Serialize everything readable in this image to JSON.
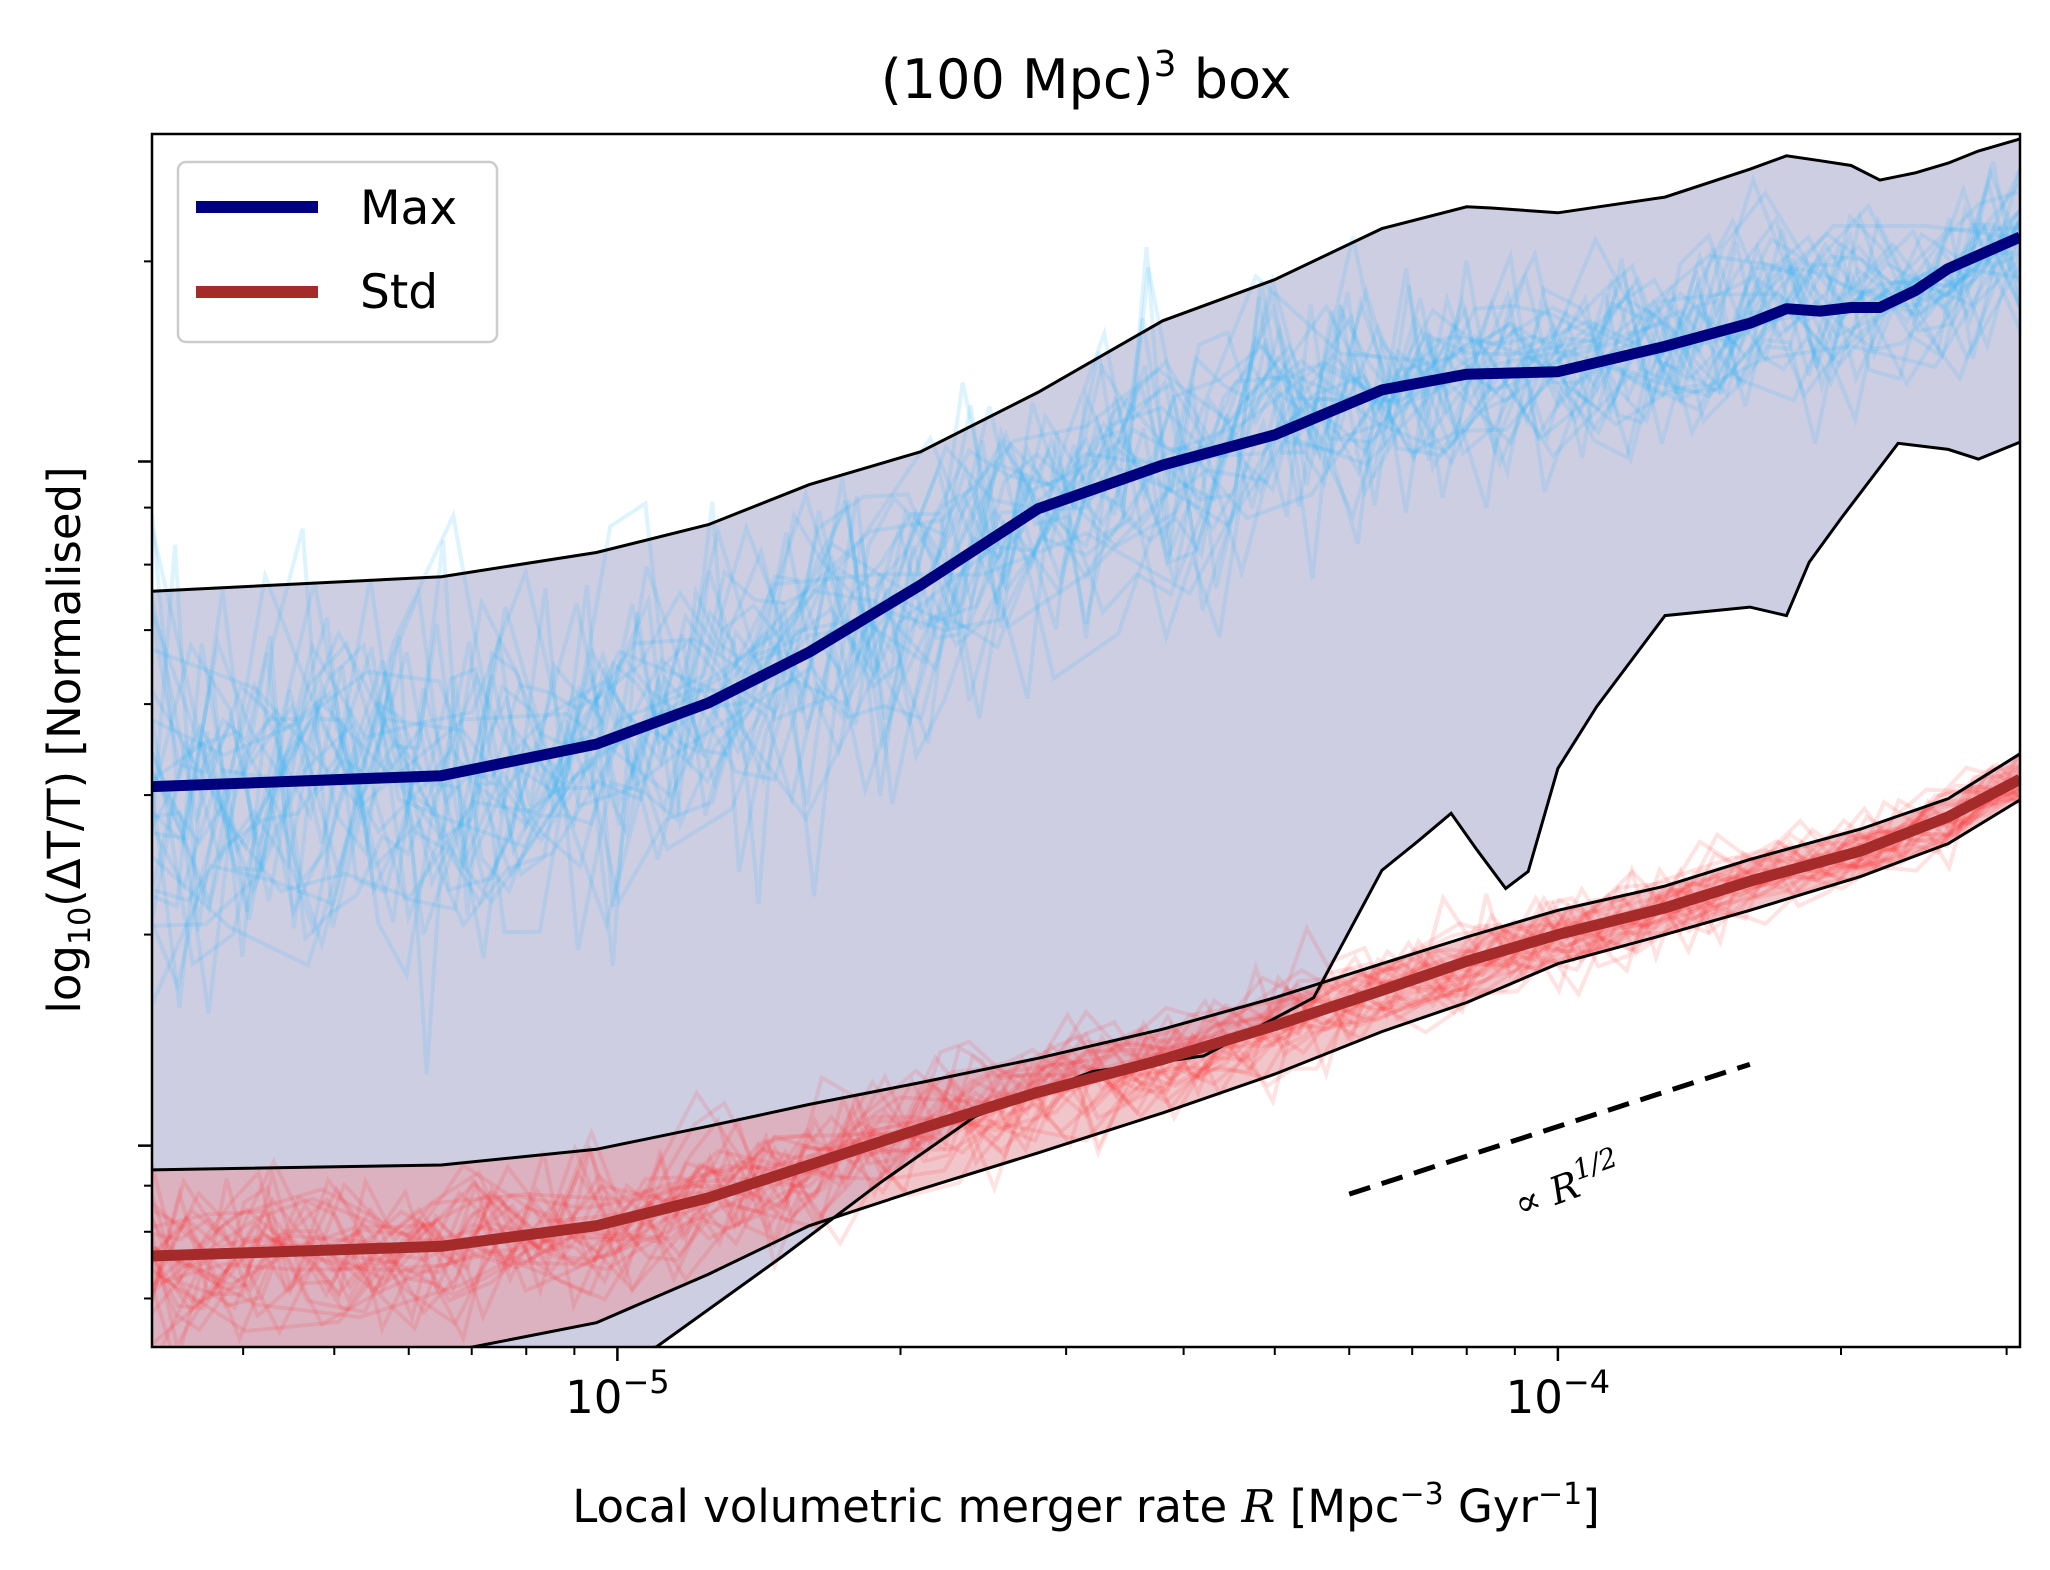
{
  "chart_data": {
    "type": "line",
    "title": "(100 Mpc)",
    "title_sup": "3",
    "title_suffix": " box",
    "xscale": "log",
    "yscale": "log",
    "xlim": [
      3.2e-06,
      0.00031
    ],
    "ylim": [
      0.0,
      1.0
    ],
    "xlabel": {
      "main": "Local volumetric merger rate ",
      "symbol": "R",
      "unit_open": " [Mpc",
      "unit_sup1": "−3",
      "unit_mid": " Gyr",
      "unit_sup2": "−1",
      "unit_close": "]"
    },
    "ylabel": {
      "prefix": "log",
      "sub": "10",
      "body": "(ΔT/T) [Normalised]"
    },
    "x_major_ticks": [
      {
        "value": 1e-05,
        "base": "10",
        "exp": "−5"
      },
      {
        "value": 0.0001,
        "base": "10",
        "exp": "−4"
      }
    ],
    "y_tick_labels": [],
    "legend": {
      "position": "upper left",
      "entries": [
        {
          "label": "Max",
          "color": "#00007f"
        },
        {
          "label": "Std",
          "color": "#a52a2a"
        }
      ]
    },
    "annotation": {
      "text_prefix": "∝ ",
      "symbol": "R",
      "exponent": "1/2",
      "line_x": [
        6e-05,
        0.00016
      ],
      "line_y": [
        0.126,
        0.233
      ]
    },
    "colors": {
      "max_line": "#00007f",
      "std_line": "#a52a2a",
      "max_band": "#b4b4d4",
      "std_band": "#e8a0a8",
      "max_samples": "#29b6f6",
      "std_samples": "#ff3030"
    },
    "series": [
      {
        "name": "Max",
        "x": [
          3.2e-06,
          6.5e-06,
          9.5e-06,
          1.25e-05,
          1.6e-05,
          2.1e-05,
          2.8e-05,
          3.8e-05,
          5e-05,
          6.5e-05,
          8e-05,
          0.0001,
          0.00013,
          0.00016,
          0.000175,
          0.00019,
          0.000205,
          0.00022,
          0.00024,
          0.00026,
          0.00028,
          0.00031
        ],
        "y": [
          0.462,
          0.471,
          0.497,
          0.531,
          0.573,
          0.628,
          0.691,
          0.727,
          0.752,
          0.789,
          0.802,
          0.804,
          0.825,
          0.844,
          0.856,
          0.854,
          0.857,
          0.857,
          0.871,
          0.889,
          0.9,
          0.915
        ]
      },
      {
        "name": "Max upper",
        "x": [
          3.2e-06,
          6.5e-06,
          9.5e-06,
          1.25e-05,
          1.6e-05,
          2.1e-05,
          2.8e-05,
          3.8e-05,
          5e-05,
          6.5e-05,
          8e-05,
          8.5e-05,
          0.0001,
          0.00013,
          0.00016,
          0.000175,
          0.00019,
          0.000205,
          0.00022,
          0.00024,
          0.00026,
          0.00028,
          0.00031
        ],
        "y": [
          0.623,
          0.635,
          0.655,
          0.678,
          0.711,
          0.738,
          0.787,
          0.846,
          0.88,
          0.922,
          0.94,
          0.939,
          0.935,
          0.948,
          0.971,
          0.982,
          0.978,
          0.974,
          0.962,
          0.968,
          0.976,
          0.986,
          0.996
        ]
      },
      {
        "name": "Max lower",
        "x": [
          3.2e-06,
          1.1e-05,
          1.5e-05,
          1.9e-05,
          2.4e-05,
          3.2e-05,
          4.2e-05,
          5.5e-05,
          6.5e-05,
          7.1e-05,
          7.7e-05,
          8.2e-05,
          8.8e-05,
          9.3e-05,
          0.0001,
          0.00011,
          0.00013,
          0.00016,
          0.000175,
          0.000185,
          0.0002,
          0.00023,
          0.00026,
          0.00028,
          0.00031
        ],
        "y": [
          -0.05,
          0.0,
          0.075,
          0.135,
          0.19,
          0.227,
          0.24,
          0.288,
          0.393,
          0.417,
          0.44,
          0.41,
          0.378,
          0.392,
          0.477,
          0.528,
          0.603,
          0.61,
          0.603,
          0.647,
          0.683,
          0.745,
          0.74,
          0.732,
          0.746
        ]
      },
      {
        "name": "Std",
        "x": [
          3.2e-06,
          6.5e-06,
          9.5e-06,
          1.25e-05,
          1.6e-05,
          2.1e-05,
          2.8e-05,
          3.8e-05,
          5e-05,
          6.5e-05,
          8e-05,
          0.0001,
          0.00013,
          0.00016,
          0.00021,
          0.00026,
          0.00031
        ],
        "y": [
          0.075,
          0.083,
          0.1,
          0.123,
          0.15,
          0.18,
          0.21,
          0.237,
          0.265,
          0.294,
          0.318,
          0.34,
          0.362,
          0.384,
          0.409,
          0.437,
          0.468
        ]
      },
      {
        "name": "Std upper",
        "x": [
          3.2e-06,
          6.5e-06,
          9.5e-06,
          1.25e-05,
          1.6e-05,
          2.1e-05,
          2.8e-05,
          3.8e-05,
          5e-05,
          6.5e-05,
          8e-05,
          0.0001,
          0.00013,
          0.00016,
          0.00021,
          0.00026,
          0.00031
        ],
        "y": [
          0.146,
          0.15,
          0.163,
          0.182,
          0.2,
          0.218,
          0.238,
          0.262,
          0.288,
          0.316,
          0.338,
          0.36,
          0.38,
          0.402,
          0.427,
          0.452,
          0.489
        ]
      },
      {
        "name": "Std lower",
        "x": [
          3.2e-06,
          6.5e-06,
          9.5e-06,
          1.25e-05,
          1.6e-05,
          2.1e-05,
          2.8e-05,
          3.8e-05,
          5e-05,
          6.5e-05,
          8e-05,
          0.0001,
          0.00013,
          0.00016,
          0.00021,
          0.00026,
          0.00031
        ],
        "y": [
          -0.02,
          -0.005,
          0.02,
          0.06,
          0.1,
          0.13,
          0.16,
          0.193,
          0.225,
          0.26,
          0.284,
          0.316,
          0.34,
          0.36,
          0.388,
          0.415,
          0.451
        ]
      }
    ]
  }
}
